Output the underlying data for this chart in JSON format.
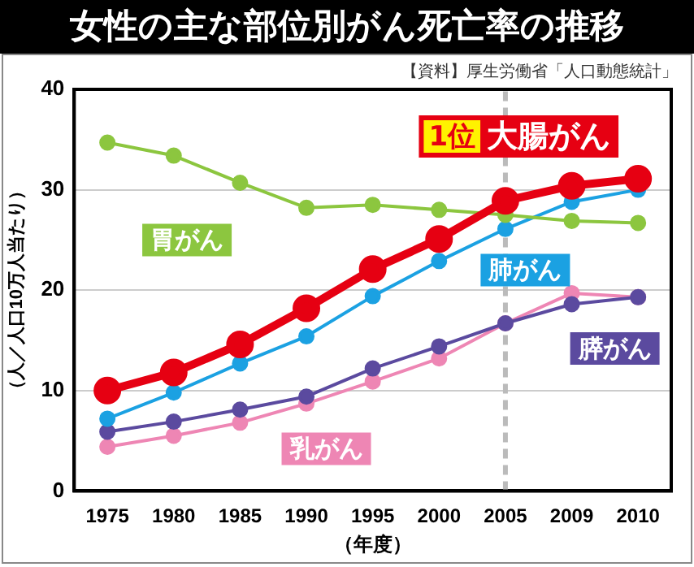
{
  "chart_data": {
    "type": "line",
    "title": "女性の主な部位別がん死亡率の推移",
    "xlabel": "（年度）",
    "ylabel": "（人／人口10万人当たり）",
    "annotations": [
      "【資料】厚生労働省「人口動態統計」",
      "1位"
    ],
    "categories": [
      "1975",
      "1980",
      "1985",
      "1990",
      "1995",
      "2000",
      "2005",
      "2009",
      "2010"
    ],
    "ylim": [
      0,
      40
    ],
    "yticks": [
      0,
      10,
      20,
      30,
      40
    ],
    "grid": "y",
    "legend": false,
    "marker": "circle",
    "line_style": "solid",
    "ref_lines": [
      {
        "axis": "x",
        "value": "2005",
        "color": "#bbbbbb",
        "line_style": "dashed"
      }
    ],
    "series": [
      {
        "name": "胃がん",
        "color": "#8cc63f",
        "values": [
          34.7,
          33.4,
          30.7,
          28.2,
          28.5,
          28.0,
          27.5,
          26.9,
          26.7
        ]
      },
      {
        "name": "大腸がん",
        "color": "#e60012",
        "values": [
          10.0,
          11.8,
          14.6,
          18.2,
          22.1,
          25.1,
          28.9,
          30.4,
          31.1
        ]
      },
      {
        "name": "肺がん",
        "color": "#1ba1e2",
        "values": [
          7.2,
          9.8,
          12.7,
          15.4,
          19.4,
          22.9,
          26.1,
          28.8,
          30.0
        ]
      },
      {
        "name": "膵がん",
        "color": "#5b4a9f",
        "values": [
          5.9,
          6.9,
          8.1,
          9.4,
          12.2,
          14.4,
          16.7,
          18.6,
          19.3
        ]
      },
      {
        "name": "乳がん",
        "color": "#ee86b4",
        "values": [
          4.4,
          5.5,
          6.8,
          8.7,
          10.9,
          13.2,
          16.7,
          19.7,
          19.3
        ]
      }
    ]
  }
}
